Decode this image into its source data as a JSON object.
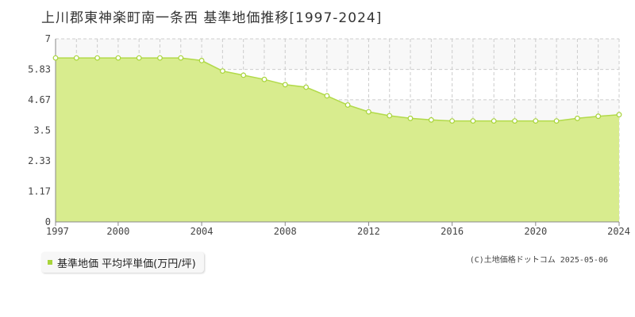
{
  "title": "上川郡東神楽町南一条西 基準地価推移[1997-2024]",
  "legend_label": "基準地価 平均坪単価(万円/坪)",
  "credit": "(C)土地価格ドットコム 2025-05-06",
  "colors": {
    "fill": "#d8ec8e",
    "line": "#b2da4a",
    "marker_stroke": "#a8d43a",
    "marker_fill": "#ffffff",
    "band": "#f8f8f8",
    "grid": "#cccccc"
  },
  "chart_data": {
    "type": "area",
    "title": "上川郡東神楽町南一条西 基準地価推移[1997-2024]",
    "xlabel": "",
    "ylabel": "",
    "xlim": [
      1997,
      2024
    ],
    "ylim": [
      0,
      7
    ],
    "yticks": [
      0,
      1.17,
      2.33,
      3.5,
      4.67,
      5.83,
      7
    ],
    "ytick_labels": [
      "0",
      "1.17",
      "2.33",
      "3.5",
      "4.67",
      "5.83",
      "7"
    ],
    "xticks": [
      1997,
      2000,
      2004,
      2008,
      2012,
      2016,
      2020,
      2024
    ],
    "xtick_labels": [
      "1997",
      "2000",
      "2004",
      "2008",
      "2012",
      "2016",
      "2020",
      "2024"
    ],
    "grid": true,
    "legend_position": "bottom-left",
    "series": [
      {
        "name": "基準地価 平均坪単価(万円/坪)",
        "x": [
          1997,
          1998,
          1999,
          2000,
          2001,
          2002,
          2003,
          2004,
          2005,
          2006,
          2007,
          2008,
          2009,
          2010,
          2011,
          2012,
          2013,
          2014,
          2015,
          2016,
          2017,
          2018,
          2019,
          2020,
          2021,
          2022,
          2023,
          2024
        ],
        "values": [
          6.27,
          6.27,
          6.27,
          6.27,
          6.27,
          6.27,
          6.27,
          6.17,
          5.77,
          5.61,
          5.45,
          5.25,
          5.15,
          4.82,
          4.47,
          4.21,
          4.06,
          3.96,
          3.9,
          3.86,
          3.86,
          3.86,
          3.86,
          3.86,
          3.86,
          3.96,
          4.04,
          4.1
        ]
      }
    ]
  }
}
